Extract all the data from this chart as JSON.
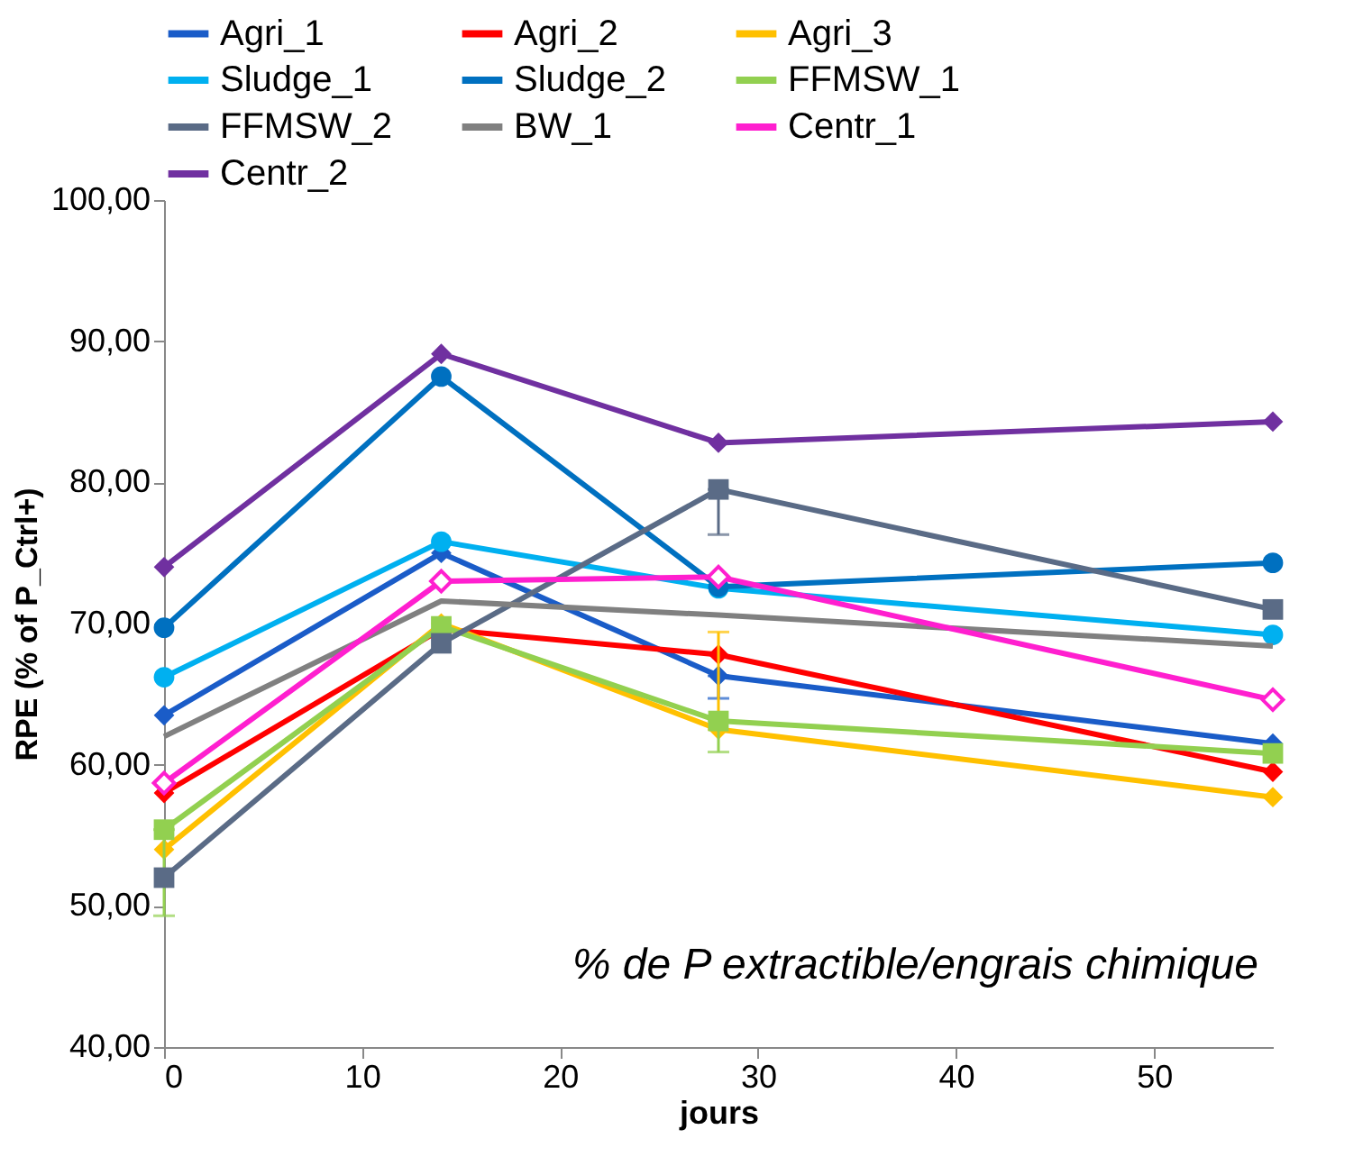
{
  "chart_data": {
    "type": "line",
    "xlabel": "jours",
    "ylabel": "RPE (% of P_Ctrl+)",
    "x": [
      0,
      14,
      28,
      56
    ],
    "xlim": [
      0,
      56
    ],
    "xticks": [
      0,
      10,
      20,
      30,
      40,
      50
    ],
    "ylim": [
      40,
      100
    ],
    "yticks": [
      {
        "value": 40,
        "label": "40,00"
      },
      {
        "value": 50,
        "label": "50,00"
      },
      {
        "value": 60,
        "label": "60,00"
      },
      {
        "value": 70,
        "label": "70,00"
      },
      {
        "value": 80,
        "label": "80,00"
      },
      {
        "value": 90,
        "label": "90,00"
      },
      {
        "value": 100,
        "label": "100,00"
      }
    ],
    "grid": false,
    "legend": "top",
    "annotations": [
      "% de P extractible/engrais chimique"
    ],
    "series": [
      {
        "name": "Agri_1",
        "color": "#1a5cc8",
        "marker": "diamond",
        "values": [
          63.5,
          75.0,
          66.3,
          61.5
        ],
        "errors": [
          null,
          null,
          [
            64.7,
            66.3
          ],
          null
        ]
      },
      {
        "name": "Agri_2",
        "color": "#ff0000",
        "marker": "diamond",
        "values": [
          58.0,
          69.6,
          67.8,
          59.5
        ]
      },
      {
        "name": "Agri_3",
        "color": "#ffc000",
        "marker": "diamond",
        "values": [
          54.0,
          70.0,
          62.5,
          57.7
        ],
        "errors": [
          null,
          null,
          [
            62.5,
            69.4
          ],
          null
        ]
      },
      {
        "name": "Sludge_1",
        "color": "#00b0f0",
        "marker": "circle",
        "values": [
          66.2,
          75.8,
          72.5,
          69.2
        ]
      },
      {
        "name": "Sludge_2",
        "color": "#0070c0",
        "marker": "circle",
        "values": [
          69.7,
          87.5,
          72.6,
          74.3
        ]
      },
      {
        "name": "FFMSW_1",
        "color": "#92d050",
        "marker": "square",
        "values": [
          55.4,
          69.8,
          63.1,
          60.8
        ],
        "errors": [
          [
            49.3,
            55.4
          ],
          null,
          [
            60.9,
            63.1
          ],
          null
        ]
      },
      {
        "name": "FFMSW_2",
        "color": "#5a6b86",
        "marker": "square",
        "values": [
          52.0,
          68.6,
          79.5,
          71.0
        ],
        "errors": [
          null,
          null,
          [
            76.3,
            79.5
          ],
          null
        ]
      },
      {
        "name": "BW_1",
        "color": "#808080",
        "marker": "none",
        "values": [
          62.0,
          71.6,
          70.6,
          68.4
        ]
      },
      {
        "name": "Centr_1",
        "color": "#ff1fcf",
        "marker": "diamond-open",
        "values": [
          58.7,
          73.0,
          73.3,
          64.6
        ]
      },
      {
        "name": "Centr_2",
        "color": "#7030a0",
        "marker": "diamond",
        "values": [
          74.0,
          89.1,
          82.8,
          84.3
        ]
      }
    ]
  }
}
